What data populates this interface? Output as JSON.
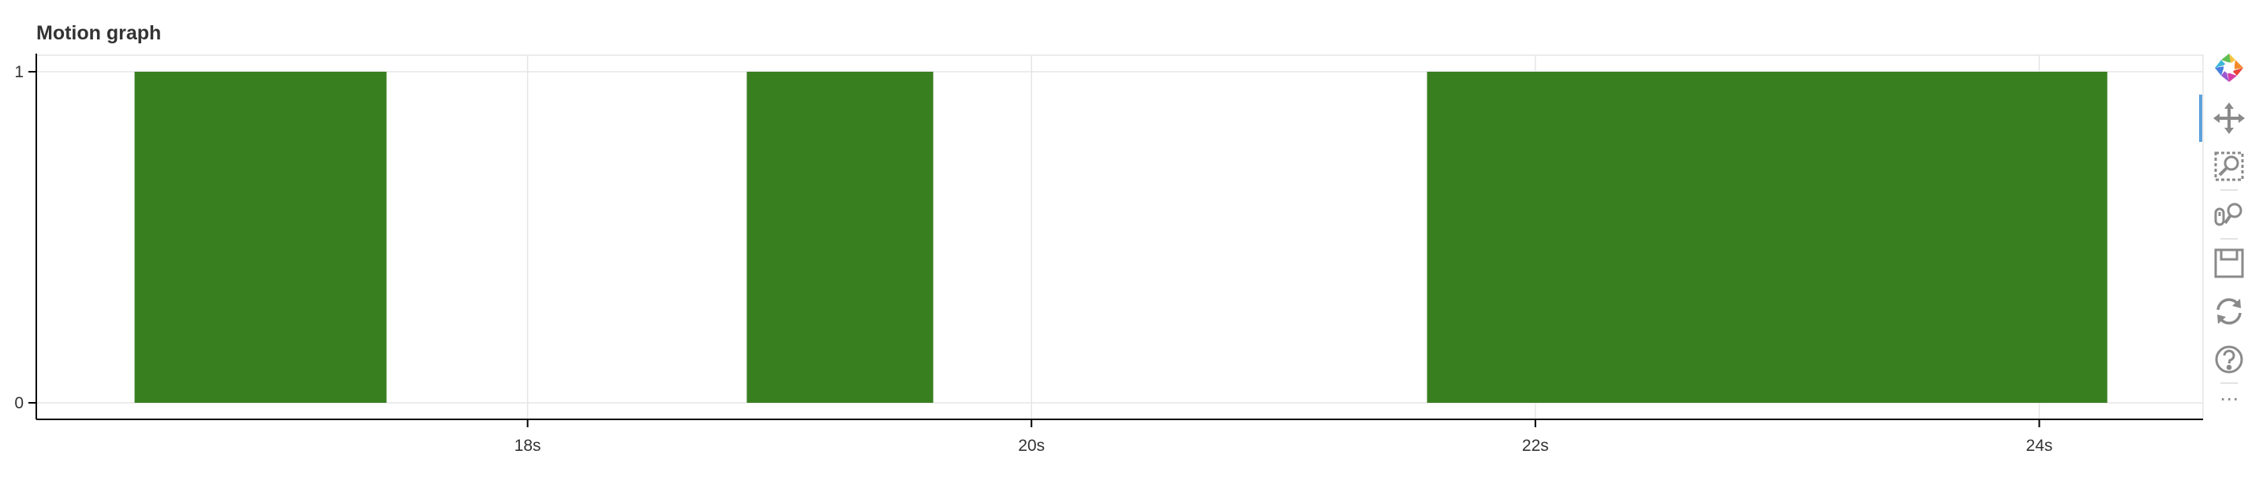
{
  "title": "Motion graph",
  "chart_data": {
    "type": "bar",
    "title": "Motion graph",
    "xlabel": "",
    "ylabel": "",
    "xlim": [
      16.05,
      24.65
    ],
    "ylim": [
      -0.05,
      1.05
    ],
    "x_ticks": [
      18,
      20,
      22,
      24
    ],
    "x_tick_labels": [
      "18s",
      "20s",
      "22s",
      "24s"
    ],
    "y_ticks": [
      0,
      1
    ],
    "y_tick_labels": [
      "0",
      "1"
    ],
    "grid": true,
    "bar_color": "#387f20",
    "segments": [
      {
        "start": 16.44,
        "end": 17.44,
        "value": 1
      },
      {
        "start": 18.87,
        "end": 19.61,
        "value": 1
      },
      {
        "start": 21.57,
        "end": 24.27,
        "value": 1
      }
    ]
  },
  "toolbar": {
    "tools": [
      {
        "name": "bokeh-logo-icon",
        "interactable": false
      },
      {
        "name": "pan-tool-icon",
        "interactable": true,
        "active": true
      },
      {
        "name": "box-zoom-tool-icon",
        "interactable": true
      },
      {
        "name": "wheel-zoom-tool-icon",
        "interactable": true
      },
      {
        "name": "save-tool-icon",
        "interactable": true
      },
      {
        "name": "reset-tool-icon",
        "interactable": true
      },
      {
        "name": "help-tool-icon",
        "interactable": true
      },
      {
        "name": "more-icon",
        "interactable": true
      }
    ],
    "more_label": "⋯"
  }
}
